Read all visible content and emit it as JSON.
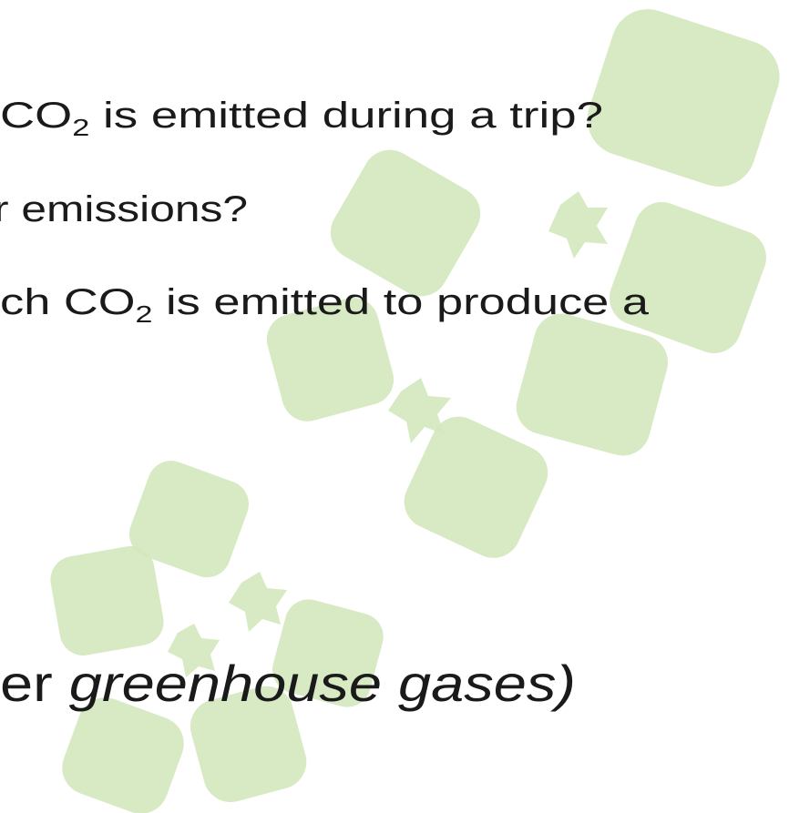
{
  "lines": [
    {
      "parts": [
        "CO",
        "2",
        " is emitted during a trip?"
      ]
    },
    {
      "parts": [
        "r emissions?"
      ]
    },
    {
      "parts": [
        "ch CO",
        "2",
        " is emitted to produce a"
      ]
    },
    {
      "parts": [
        "er ",
        "greenhouse gases)"
      ]
    }
  ]
}
